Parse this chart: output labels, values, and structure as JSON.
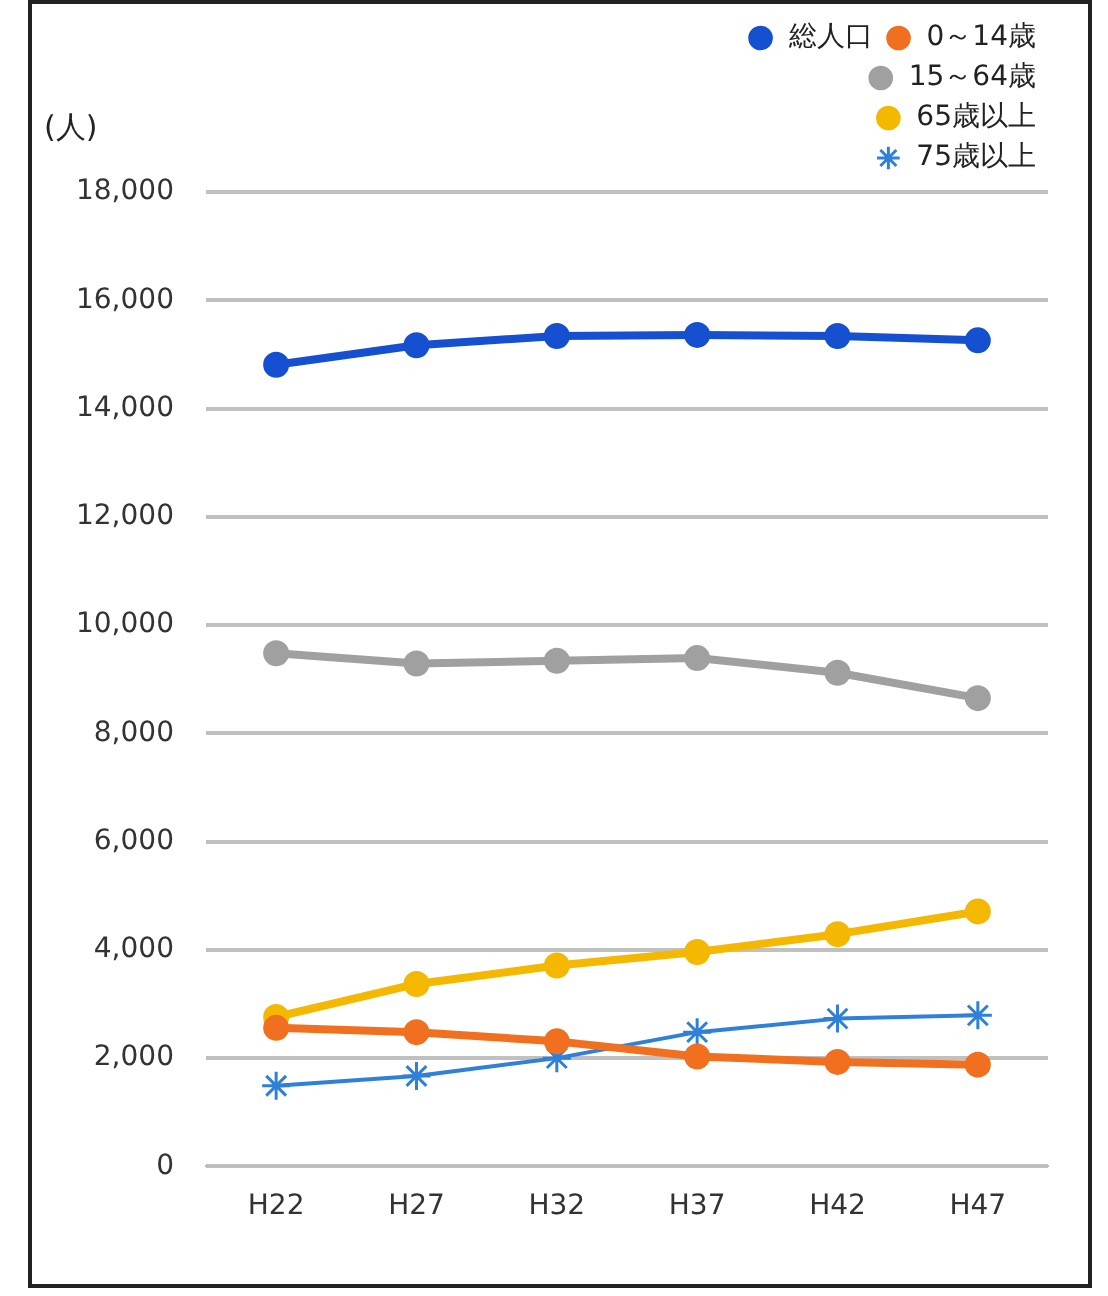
{
  "chart_data": {
    "type": "line",
    "ylabel": "(人)",
    "categories": [
      "H22",
      "H27",
      "H32",
      "H37",
      "H42",
      "H47"
    ],
    "series": [
      {
        "name": "総人口",
        "color": "#1450d0",
        "marker": "circle",
        "values": [
          14810,
          15170,
          15340,
          15360,
          15340,
          15260
        ]
      },
      {
        "name": "0～14歳",
        "color": "#f07020",
        "marker": "circle",
        "values": [
          2560,
          2480,
          2310,
          2030,
          1930,
          1880
        ]
      },
      {
        "name": "15～64歳",
        "color": "#a0a0a0",
        "marker": "circle",
        "values": [
          9480,
          9290,
          9340,
          9390,
          9120,
          8650
        ]
      },
      {
        "name": "65歳以上",
        "color": "#f5b800",
        "marker": "circle",
        "values": [
          2760,
          3370,
          3710,
          3960,
          4290,
          4710
        ]
      },
      {
        "name": "75歳以上",
        "color": "#2f80d8",
        "marker": "cross",
        "values": [
          1490,
          1670,
          2000,
          2480,
          2730,
          2790
        ]
      }
    ],
    "ylim": [
      0,
      18000
    ],
    "yticks": [
      0,
      {
        "value": 2000,
        "label": "2,000"
      },
      {
        "value": 4000,
        "label": "4,000"
      },
      {
        "value": 6000,
        "label": "6,000"
      },
      {
        "value": 8000,
        "label": "8,000"
      },
      {
        "value": 10000,
        "label": "10,000"
      },
      {
        "value": 12000,
        "label": "12,000"
      },
      {
        "value": 14000,
        "label": "14,000"
      },
      {
        "value": 16000,
        "label": "16,000"
      },
      {
        "value": 18000,
        "label": "18,000"
      }
    ],
    "grid": "y",
    "legend": "top right"
  }
}
